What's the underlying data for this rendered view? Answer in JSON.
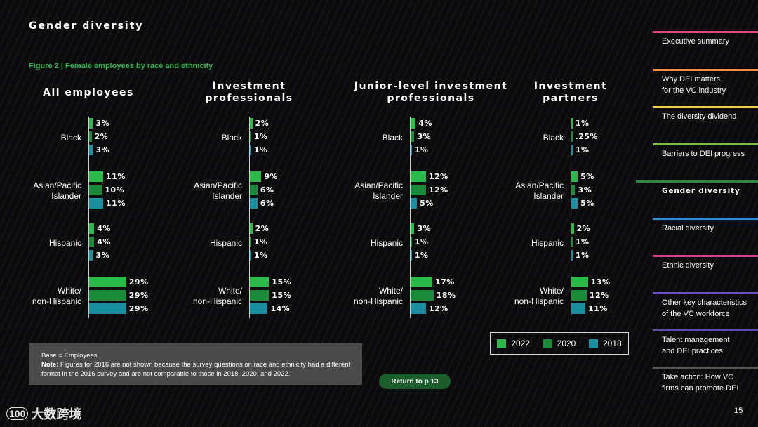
{
  "page_title": "Gender diversity",
  "figure_caption": "Figure 2  |  Female employees by race and ethnicity",
  "colors": {
    "y2022": "#2db84b",
    "y2020": "#1c8a3b",
    "y2018": "#1a8fa0",
    "axis": "#cfcfcf"
  },
  "chart_data": {
    "type": "bar",
    "orientation": "horizontal",
    "categories": [
      "Black",
      "Asian/Pacific\nIslander",
      "Hispanic",
      "White/\nnon-Hispanic"
    ],
    "legend": [
      "2022",
      "2020",
      "2018"
    ],
    "legend_position": "bottom-right",
    "panels": [
      {
        "title": "All employees",
        "series": [
          {
            "name": "2022",
            "values": [
              3,
              11,
              4,
              29
            ]
          },
          {
            "name": "2020",
            "values": [
              2,
              10,
              4,
              29
            ]
          },
          {
            "name": "2018",
            "values": [
              3,
              11,
              3,
              29
            ]
          }
        ],
        "labels": [
          [
            "3%",
            "2%",
            "3%"
          ],
          [
            "11%",
            "10%",
            "11%"
          ],
          [
            "4%",
            "4%",
            "3%"
          ],
          [
            "29%",
            "29%",
            "29%"
          ]
        ]
      },
      {
        "title": "Investment\nprofessionals",
        "series": [
          {
            "name": "2022",
            "values": [
              2,
              9,
              2,
              15
            ]
          },
          {
            "name": "2020",
            "values": [
              1,
              6,
              1,
              15
            ]
          },
          {
            "name": "2018",
            "values": [
              1,
              6,
              1,
              14
            ]
          }
        ],
        "labels": [
          [
            "2%",
            "1%",
            "1%"
          ],
          [
            "9%",
            "6%",
            "6%"
          ],
          [
            "2%",
            "1%",
            "1%"
          ],
          [
            "15%",
            "15%",
            "14%"
          ]
        ]
      },
      {
        "title": "Junior-level investment\nprofessionals",
        "series": [
          {
            "name": "2022",
            "values": [
              4,
              12,
              3,
              17
            ]
          },
          {
            "name": "2020",
            "values": [
              3,
              12,
              1,
              18
            ]
          },
          {
            "name": "2018",
            "values": [
              1,
              5,
              1,
              12
            ]
          }
        ],
        "labels": [
          [
            "4%",
            "3%",
            "1%"
          ],
          [
            "12%",
            "12%",
            "5%"
          ],
          [
            "3%",
            "1%",
            "1%"
          ],
          [
            "17%",
            "18%",
            "12%"
          ]
        ]
      },
      {
        "title": "Investment\npartners",
        "series": [
          {
            "name": "2022",
            "values": [
              1,
              5,
              2,
              13
            ]
          },
          {
            "name": "2020",
            "values": [
              0.25,
              3,
              1,
              12
            ]
          },
          {
            "name": "2018",
            "values": [
              1,
              5,
              1,
              11
            ]
          }
        ],
        "labels": [
          [
            "1%",
            ".25%",
            "1%"
          ],
          [
            "5%",
            "3%",
            "5%"
          ],
          [
            "2%",
            "1%",
            "1%"
          ],
          [
            "13%",
            "12%",
            "11%"
          ]
        ]
      }
    ]
  },
  "note": {
    "base": "Base = Employees",
    "note_label": "Note:",
    "note_text": " Figures for 2016 are not shown because the survey questions on race and ethnicity had a different format in the 2016 survey and are not comparable to those in 2018, 2020, and 2022."
  },
  "return_button": "Return to p 13",
  "nav": {
    "items": [
      {
        "label": "Executive summary",
        "color": "#e0457b",
        "active": false
      },
      {
        "label": "Why DEI matters\nfor the VC industry",
        "color": "#f08a3c",
        "active": false
      },
      {
        "label": "The diversity dividend",
        "color": "#f2d04b",
        "active": false
      },
      {
        "label": "Barriers to DEI progress",
        "color": "#79c043",
        "active": false
      },
      {
        "label": "Gender diversity",
        "color": "#2a8a3e",
        "active": true
      },
      {
        "label": "Racial diversity",
        "color": "#2f8fd0",
        "active": false
      },
      {
        "label": "Ethnic diversity",
        "color": "#d6408b",
        "active": false
      },
      {
        "label": "Other key characteristics\nof the VC workforce",
        "color": "#6d4fc4",
        "active": false
      },
      {
        "label": "Talent management\nand DEI practices",
        "color": "#5a4bb0",
        "active": false
      },
      {
        "label": "Take action: How VC\nfirms can promote DEI",
        "color": "#555555",
        "active": false
      }
    ]
  },
  "logo": {
    "text": "大数跨境",
    "mark": "100"
  },
  "page_number": "15"
}
